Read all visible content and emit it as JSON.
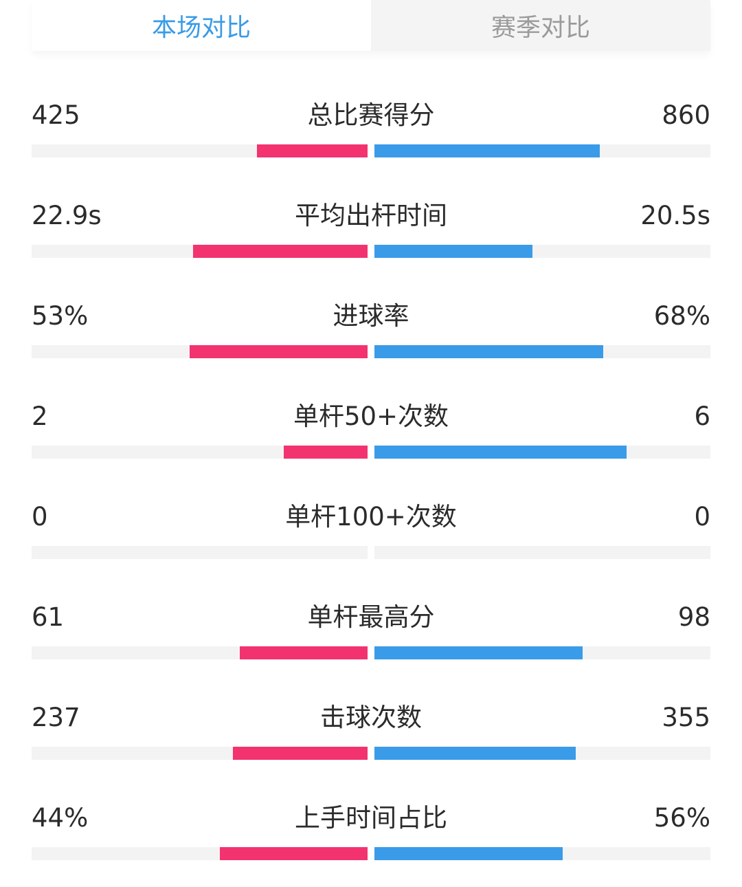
{
  "tabs": [
    {
      "label": "本场对比",
      "active": true
    },
    {
      "label": "赛季对比",
      "active": false
    }
  ],
  "colors": {
    "accent": "#3a9be6",
    "left_bar": "#f2336f",
    "right_bar": "#3a9be8",
    "track": "#f3f3f3"
  },
  "stats": [
    {
      "label": "总比赛得分",
      "left": "425",
      "right": "860",
      "left_fill": 0.33,
      "right_fill": 0.67
    },
    {
      "label": "平均出杆时间",
      "left": "22.9s",
      "right": "20.5s",
      "left_fill": 0.52,
      "right_fill": 0.47
    },
    {
      "label": "进球率",
      "left": "53%",
      "right": "68%",
      "left_fill": 0.53,
      "right_fill": 0.68
    },
    {
      "label": "单杆50+次数",
      "left": "2",
      "right": "6",
      "left_fill": 0.25,
      "right_fill": 0.75
    },
    {
      "label": "单杆100+次数",
      "left": "0",
      "right": "0",
      "left_fill": 0,
      "right_fill": 0
    },
    {
      "label": "单杆最高分",
      "left": "61",
      "right": "98",
      "left_fill": 0.38,
      "right_fill": 0.62
    },
    {
      "label": "击球次数",
      "left": "237",
      "right": "355",
      "left_fill": 0.4,
      "right_fill": 0.6
    },
    {
      "label": "上手时间占比",
      "left": "44%",
      "right": "56%",
      "left_fill": 0.44,
      "right_fill": 0.56
    }
  ]
}
